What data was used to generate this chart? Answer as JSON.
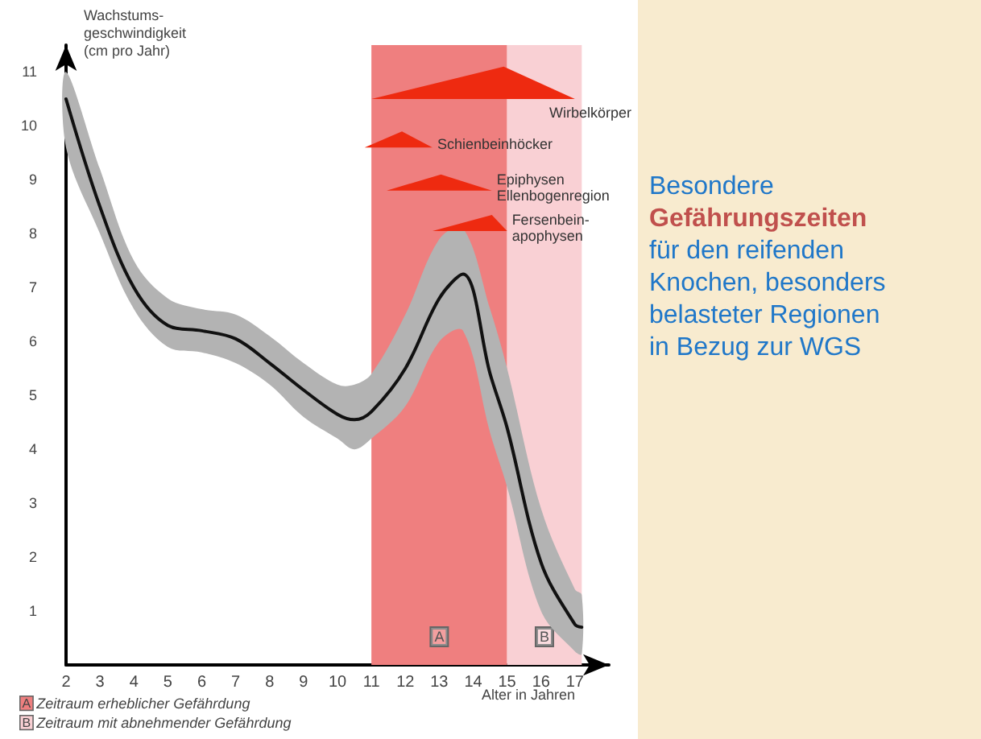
{
  "chart_data": {
    "type": "line",
    "ylabel": "Wachstums-\ngeschwindigkeit\n(cm pro Jahr)",
    "xlabel": "Alter in Jahren",
    "xlim": [
      2,
      18
    ],
    "xticks": [
      2,
      3,
      4,
      5,
      6,
      7,
      8,
      9,
      10,
      11,
      12,
      13,
      14,
      15,
      16,
      17
    ],
    "ylim": [
      0,
      11.5
    ],
    "yticks": [
      1,
      2,
      3,
      4,
      5,
      6,
      7,
      8,
      9,
      10,
      11
    ],
    "grid": false,
    "legend": false,
    "bands": [
      {
        "axis": "x",
        "from": 11,
        "to": 15,
        "label": "A",
        "color": "#ef7f7f"
      },
      {
        "axis": "x",
        "from": 15,
        "to": 17.2,
        "label": "B",
        "color": "#f9d0d4"
      }
    ],
    "series": [
      {
        "type": "line",
        "color": "#111111",
        "x": [
          2,
          3,
          4,
          5,
          6,
          7,
          8,
          9,
          10,
          10.5,
          11,
          12,
          13,
          13.7,
          14.5,
          15,
          16,
          17,
          17.2
        ],
        "values": [
          10.5,
          8.5,
          7.0,
          6.3,
          6.2,
          6.05,
          5.6,
          5.1,
          4.65,
          4.55,
          4.7,
          5.5,
          6.8,
          7.25,
          5.4,
          4.4,
          1.9,
          0.75,
          0.7
        ],
        "lower": [
          9.6,
          8.0,
          6.6,
          5.9,
          5.8,
          5.6,
          5.2,
          4.6,
          4.2,
          4.0,
          4.2,
          4.8,
          6.0,
          6.2,
          4.3,
          3.3,
          1.0,
          0.25,
          0.2
        ],
        "upper": [
          11.0,
          9.2,
          7.5,
          6.8,
          6.6,
          6.5,
          6.1,
          5.6,
          5.2,
          5.2,
          5.4,
          6.5,
          7.9,
          8.1,
          6.6,
          5.5,
          2.9,
          1.4,
          1.3
        ]
      },
      {
        "type": "area",
        "name": "Wirbelkörper",
        "color": "#ee2a10",
        "x": [
          11,
          14.9,
          17,
          11
        ],
        "values": [
          10.5,
          11.1,
          10.5,
          10.5
        ]
      },
      {
        "type": "area",
        "name": "Schienbeinhöcker",
        "color": "#ee2a10",
        "x": [
          10.8,
          11.9,
          12.8,
          10.8
        ],
        "values": [
          9.6,
          9.9,
          9.6,
          9.6
        ]
      },
      {
        "type": "area",
        "name": "Epiphysen\nEllenbogenregion",
        "color": "#ee2a10",
        "x": [
          11.45,
          13.05,
          14.55,
          11.45
        ],
        "values": [
          8.8,
          9.1,
          8.8,
          8.8
        ]
      },
      {
        "type": "area",
        "name": "Fersenbein-\napophysen",
        "color": "#ee2a10",
        "x": [
          12.8,
          14.55,
          15.0,
          12.8
        ],
        "values": [
          8.05,
          8.35,
          8.05,
          8.05
        ]
      }
    ],
    "annotations": [
      "Zeitraum erheblicher Gefährdung",
      "Zeitraum mit abnehmender Gefährdung",
      "Besondere",
      "Gefährungszeiten",
      "für den reifenden\nKnochen, besonders\nbelasteter Regionen\nin Bezug zur WGS"
    ]
  }
}
